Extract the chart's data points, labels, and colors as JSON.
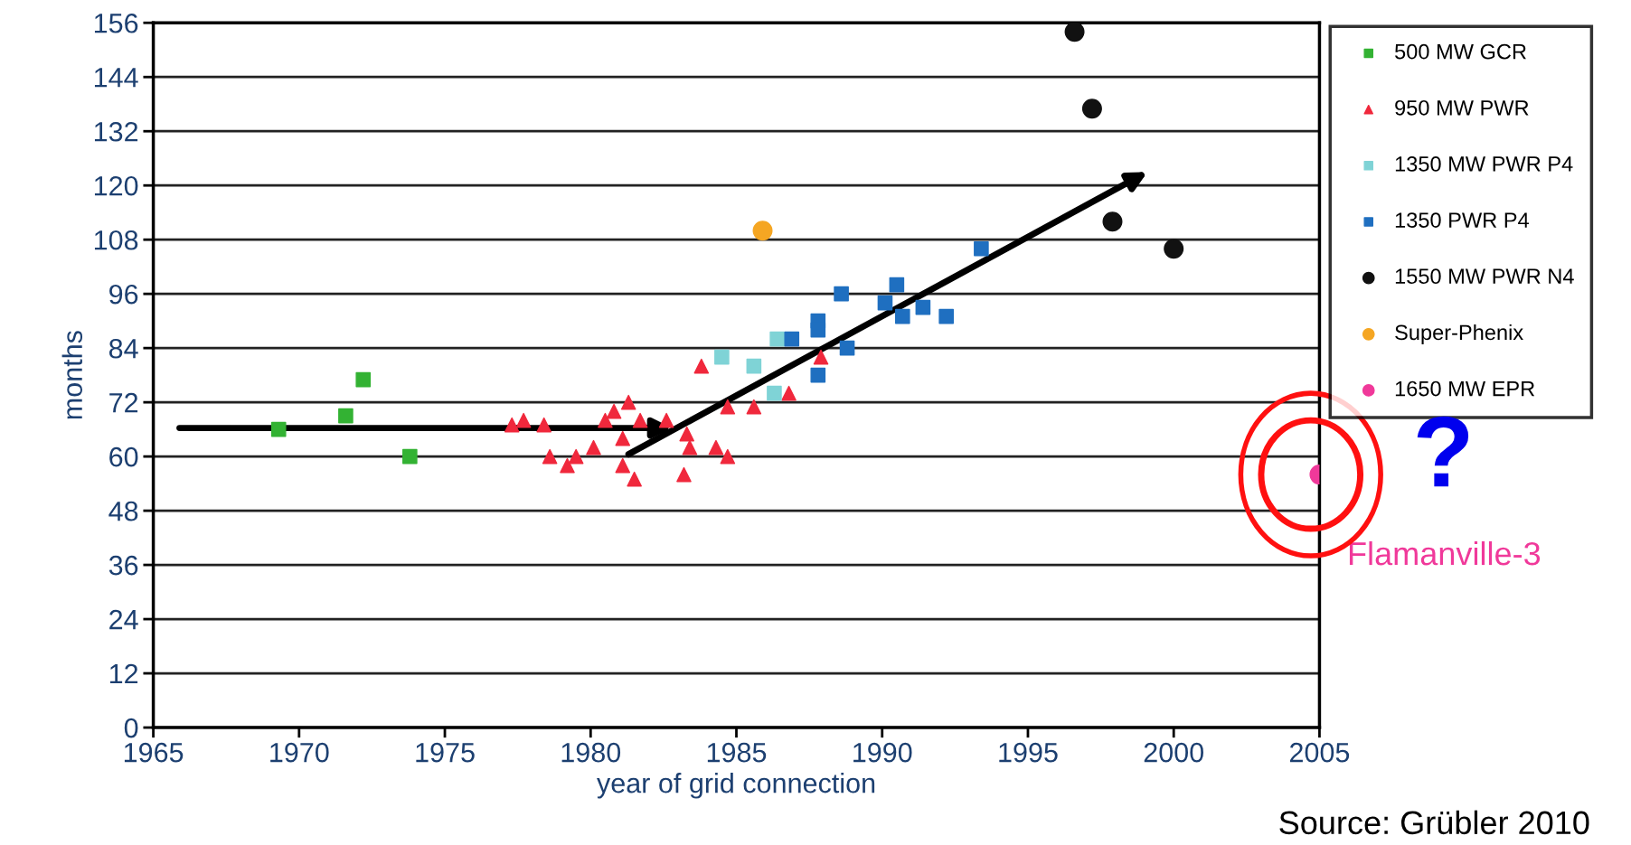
{
  "chart_data": {
    "type": "scatter",
    "xlabel": "year of grid connection",
    "ylabel": "months",
    "xlim": [
      1965,
      2005
    ],
    "xticks": [
      1965,
      1970,
      1975,
      1980,
      1985,
      1990,
      1995,
      2000,
      2005
    ],
    "ylim": [
      0,
      156
    ],
    "yticks": [
      0,
      12,
      24,
      36,
      48,
      60,
      72,
      84,
      96,
      108,
      120,
      132,
      144,
      156
    ],
    "grid": "y",
    "legend": "right",
    "series": [
      {
        "name": "500 MW GCR",
        "color": "#33b233",
        "marker": "square",
        "x": [
          1969.3,
          1971.6,
          1972.2,
          1973.8
        ],
        "values": [
          66,
          69,
          77,
          60
        ]
      },
      {
        "name": "950 MW PWR",
        "color": "#f0283c",
        "marker": "triangle",
        "x": [
          1977.3,
          1977.7,
          1978.4,
          1978.6,
          1979.2,
          1979.5,
          1980.1,
          1980.5,
          1980.8,
          1981.1,
          1981.3,
          1981.1,
          1981.5,
          1981.7,
          1982.6,
          1983.3,
          1983.2,
          1983.4,
          1983.8,
          1984.3,
          1984.7,
          1984.7,
          1985.6,
          1986.8,
          1987.9
        ],
        "values": [
          67,
          68,
          67,
          60,
          58,
          60,
          62,
          68,
          70,
          64,
          72,
          58,
          55,
          68,
          68,
          65,
          56,
          62,
          80,
          62,
          60,
          71,
          71,
          74,
          82
        ]
      },
      {
        "name": "1350 MW PWR P4",
        "color": "#7fd3d6",
        "marker": "square",
        "x": [
          1984.5,
          1985.6,
          1986.3,
          1986.4
        ],
        "values": [
          82,
          80,
          74,
          86
        ]
      },
      {
        "name": "1350 PWR P4",
        "color": "#1f6fc0",
        "marker": "square",
        "x": [
          1986.9,
          1987.8,
          1987.8,
          1987.8,
          1988.6,
          1988.8,
          1990.1,
          1990.5,
          1990.7,
          1991.4,
          1992.2,
          1993.4
        ],
        "values": [
          86,
          90,
          78,
          88,
          96,
          84,
          94,
          98,
          91,
          93,
          91,
          106
        ]
      },
      {
        "name": "1550 MW PWR N4",
        "color": "#111111",
        "marker": "circle",
        "x": [
          1996.6,
          1997.2,
          1997.9,
          2000.0
        ],
        "values": [
          154,
          137,
          112,
          106
        ]
      },
      {
        "name": "Super-Phenix",
        "color": "#f5a623",
        "marker": "circle",
        "x": [
          1985.9
        ],
        "values": [
          110
        ]
      },
      {
        "name": "1650 MW EPR",
        "color": "#f0399a",
        "marker": "circle",
        "x": [
          2005
        ],
        "values": [
          56
        ]
      }
    ],
    "annotations": [
      {
        "text": "Flamanville-3",
        "x": 2005,
        "y": 56
      },
      "?",
      "Source: Grübler 2010"
    ]
  }
}
